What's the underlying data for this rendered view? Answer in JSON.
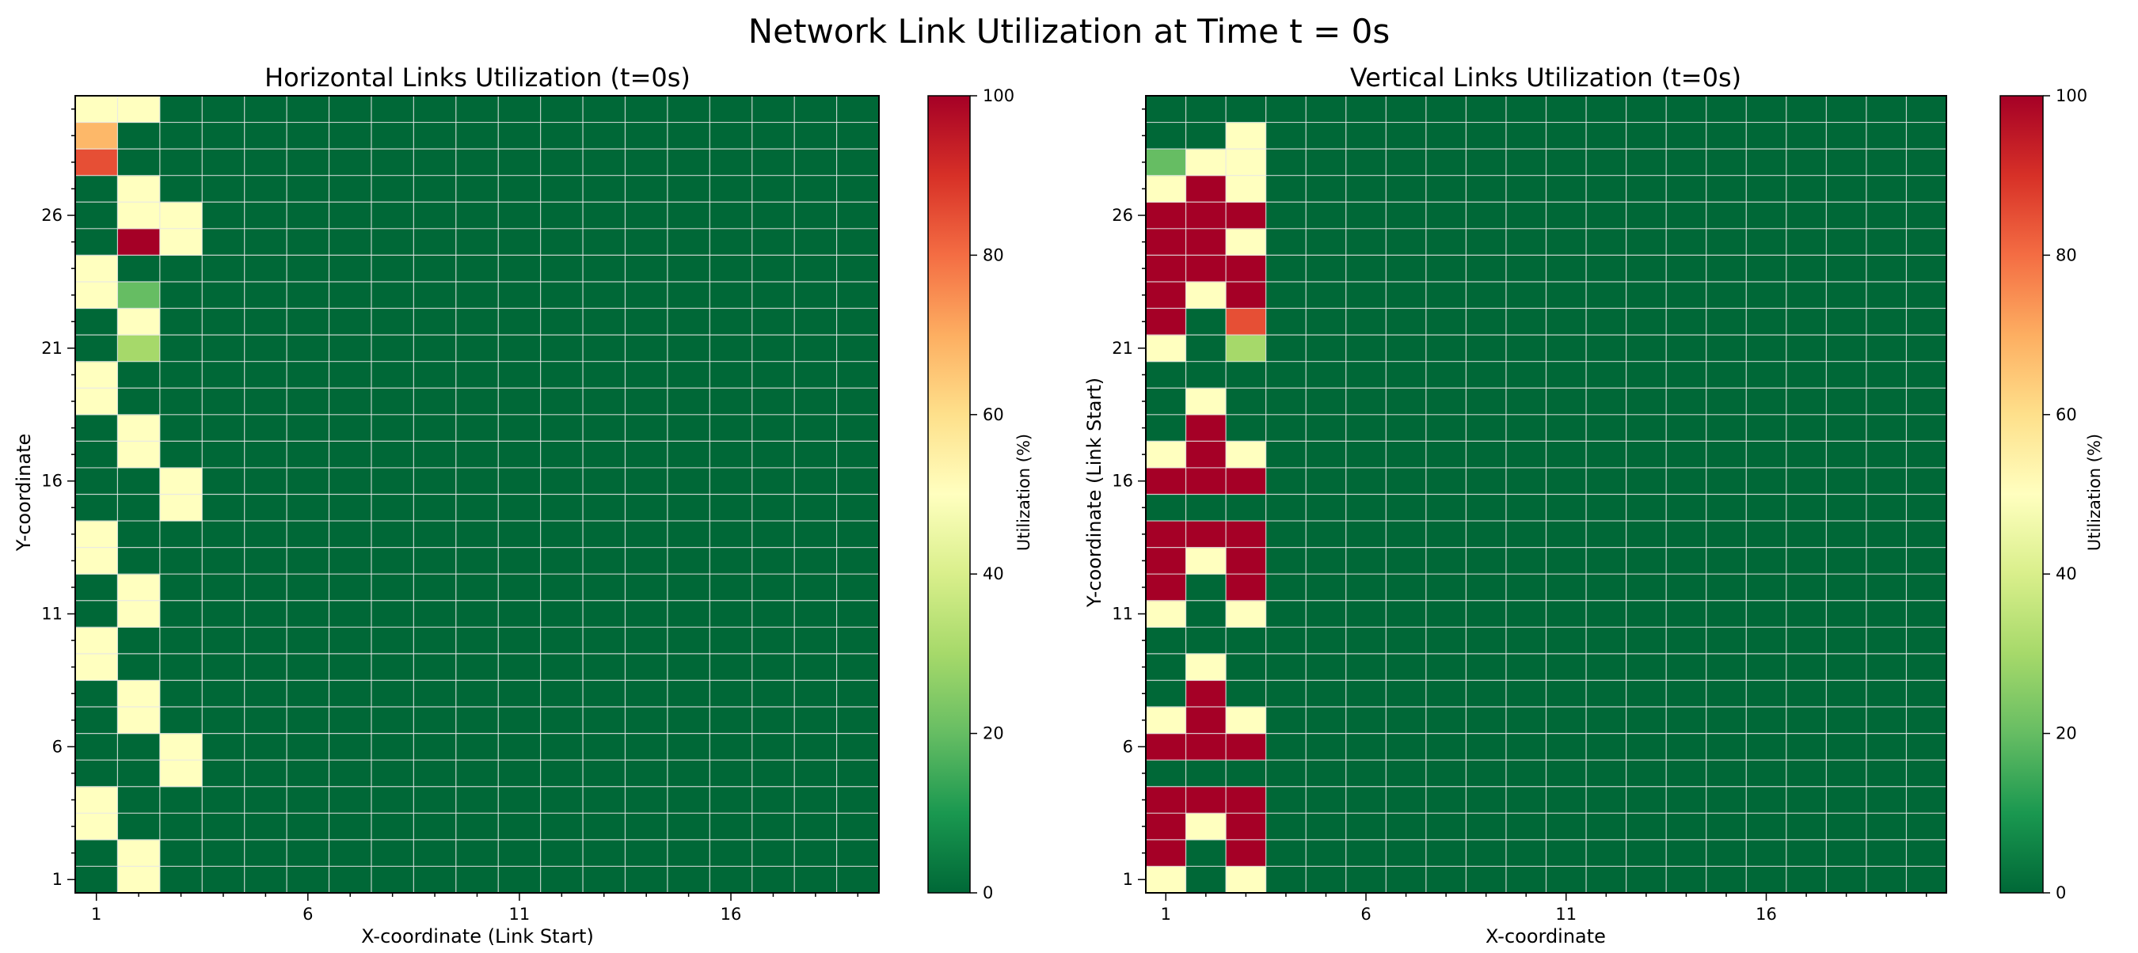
{
  "figure": {
    "title": "Network Link Utilization at Time t = 0s"
  },
  "colorscale": {
    "stops": [
      "#006837",
      "#1a9850",
      "#66bd63",
      "#a6d96a",
      "#d9ef8b",
      "#ffffbf",
      "#fee08b",
      "#fdae61",
      "#f46d43",
      "#d73027",
      "#a50026"
    ],
    "ticks": [
      "0",
      "20",
      "40",
      "60",
      "80",
      "100"
    ],
    "label": "Utilization (%)",
    "range": [
      0,
      100
    ]
  },
  "chart_data": [
    {
      "type": "heatmap",
      "title": "Horizontal Links Utilization (t=0s)",
      "xlabel": "X-coordinate (Link Start)",
      "ylabel": "Y-coordinate",
      "x_ticks": [
        "1",
        "6",
        "11",
        "16"
      ],
      "y_ticks": [
        "1",
        "6",
        "11",
        "16",
        "21",
        "26"
      ],
      "xlim": [
        1,
        19
      ],
      "ylim": [
        1,
        30
      ],
      "grid": true,
      "n_cols": 19,
      "n_rows": 30,
      "default_value": 0,
      "rows": [
        {
          "y": 1,
          "values": [
            0,
            50,
            0
          ]
        },
        {
          "y": 2,
          "values": [
            0,
            50,
            0
          ]
        },
        {
          "y": 3,
          "values": [
            50,
            0,
            0
          ]
        },
        {
          "y": 4,
          "values": [
            50,
            0,
            0
          ]
        },
        {
          "y": 5,
          "values": [
            0,
            0,
            50
          ]
        },
        {
          "y": 6,
          "values": [
            0,
            0,
            50
          ]
        },
        {
          "y": 7,
          "values": [
            0,
            50,
            0
          ]
        },
        {
          "y": 8,
          "values": [
            0,
            50,
            0
          ]
        },
        {
          "y": 9,
          "values": [
            50,
            0,
            0
          ]
        },
        {
          "y": 10,
          "values": [
            50,
            0,
            0
          ]
        },
        {
          "y": 11,
          "values": [
            0,
            50,
            0
          ]
        },
        {
          "y": 12,
          "values": [
            0,
            50,
            0
          ]
        },
        {
          "y": 13,
          "values": [
            50,
            0,
            0
          ]
        },
        {
          "y": 14,
          "values": [
            50,
            0,
            0
          ]
        },
        {
          "y": 15,
          "values": [
            0,
            0,
            50
          ]
        },
        {
          "y": 16,
          "values": [
            0,
            0,
            50
          ]
        },
        {
          "y": 17,
          "values": [
            0,
            50,
            0
          ]
        },
        {
          "y": 18,
          "values": [
            0,
            50,
            0
          ]
        },
        {
          "y": 19,
          "values": [
            50,
            0,
            0
          ]
        },
        {
          "y": 20,
          "values": [
            50,
            0,
            0
          ]
        },
        {
          "y": 21,
          "values": [
            0,
            30,
            0
          ]
        },
        {
          "y": 22,
          "values": [
            0,
            50,
            0
          ]
        },
        {
          "y": 23,
          "values": [
            50,
            20,
            0
          ]
        },
        {
          "y": 24,
          "values": [
            50,
            0,
            0
          ]
        },
        {
          "y": 25,
          "values": [
            0,
            100,
            50
          ]
        },
        {
          "y": 26,
          "values": [
            0,
            50,
            50
          ]
        },
        {
          "y": 27,
          "values": [
            0,
            50,
            0
          ]
        },
        {
          "y": 28,
          "values": [
            85,
            0,
            0
          ]
        },
        {
          "y": 29,
          "values": [
            68,
            0,
            0
          ]
        },
        {
          "y": 30,
          "values": [
            50,
            50,
            0
          ]
        }
      ]
    },
    {
      "type": "heatmap",
      "title": "Vertical Links Utilization (t=0s)",
      "xlabel": "X-coordinate",
      "ylabel": "Y-coordinate (Link Start)",
      "x_ticks": [
        "1",
        "6",
        "11",
        "16"
      ],
      "y_ticks": [
        "1",
        "6",
        "11",
        "16",
        "21",
        "26"
      ],
      "xlim": [
        1,
        20
      ],
      "ylim": [
        1,
        30
      ],
      "grid": true,
      "n_cols": 20,
      "n_rows": 30,
      "default_value": 0,
      "rows": [
        {
          "y": 1,
          "values": [
            50,
            0,
            50
          ]
        },
        {
          "y": 2,
          "values": [
            100,
            0,
            100
          ]
        },
        {
          "y": 3,
          "values": [
            100,
            50,
            100
          ]
        },
        {
          "y": 4,
          "values": [
            100,
            100,
            100
          ]
        },
        {
          "y": 5,
          "values": [
            0,
            0,
            0
          ]
        },
        {
          "y": 6,
          "values": [
            100,
            100,
            100
          ]
        },
        {
          "y": 7,
          "values": [
            50,
            100,
            50
          ]
        },
        {
          "y": 8,
          "values": [
            0,
            100,
            0
          ]
        },
        {
          "y": 9,
          "values": [
            0,
            50,
            0
          ]
        },
        {
          "y": 10,
          "values": [
            0,
            0,
            0
          ]
        },
        {
          "y": 11,
          "values": [
            50,
            0,
            50
          ]
        },
        {
          "y": 12,
          "values": [
            100,
            0,
            100
          ]
        },
        {
          "y": 13,
          "values": [
            100,
            50,
            100
          ]
        },
        {
          "y": 14,
          "values": [
            100,
            100,
            100
          ]
        },
        {
          "y": 15,
          "values": [
            0,
            0,
            0
          ]
        },
        {
          "y": 16,
          "values": [
            100,
            100,
            100
          ]
        },
        {
          "y": 17,
          "values": [
            50,
            100,
            50
          ]
        },
        {
          "y": 18,
          "values": [
            0,
            100,
            0
          ]
        },
        {
          "y": 19,
          "values": [
            0,
            50,
            0
          ]
        },
        {
          "y": 20,
          "values": [
            0,
            0,
            0
          ]
        },
        {
          "y": 21,
          "values": [
            50,
            0,
            30
          ]
        },
        {
          "y": 22,
          "values": [
            100,
            0,
            85
          ]
        },
        {
          "y": 23,
          "values": [
            100,
            50,
            100
          ]
        },
        {
          "y": 24,
          "values": [
            100,
            100,
            100
          ]
        },
        {
          "y": 25,
          "values": [
            100,
            100,
            50
          ]
        },
        {
          "y": 26,
          "values": [
            100,
            100,
            100
          ]
        },
        {
          "y": 27,
          "values": [
            50,
            100,
            50
          ]
        },
        {
          "y": 28,
          "values": [
            20,
            50,
            50
          ]
        },
        {
          "y": 29,
          "values": [
            0,
            0,
            50
          ]
        },
        {
          "y": 30,
          "values": [
            0,
            0,
            0
          ]
        }
      ]
    }
  ]
}
